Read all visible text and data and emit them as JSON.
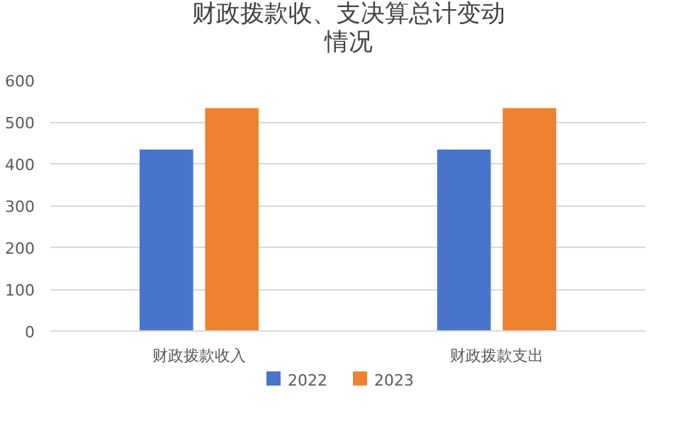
{
  "chart_data": {
    "type": "bar",
    "title": "财政拨款收、支决算总计变动情况",
    "categories": [
      "财政拨款收入",
      "财政拨款支出"
    ],
    "series": [
      {
        "name": "2022",
        "color": "#4874cb",
        "values": [
          434,
          434
        ]
      },
      {
        "name": "2023",
        "color": "#ee822f",
        "values": [
          533,
          533
        ]
      }
    ],
    "ylim": [
      0,
      600
    ],
    "yticks": [
      0,
      100,
      200,
      300,
      400,
      500,
      600
    ],
    "grid": "y",
    "legend": "bottom"
  }
}
